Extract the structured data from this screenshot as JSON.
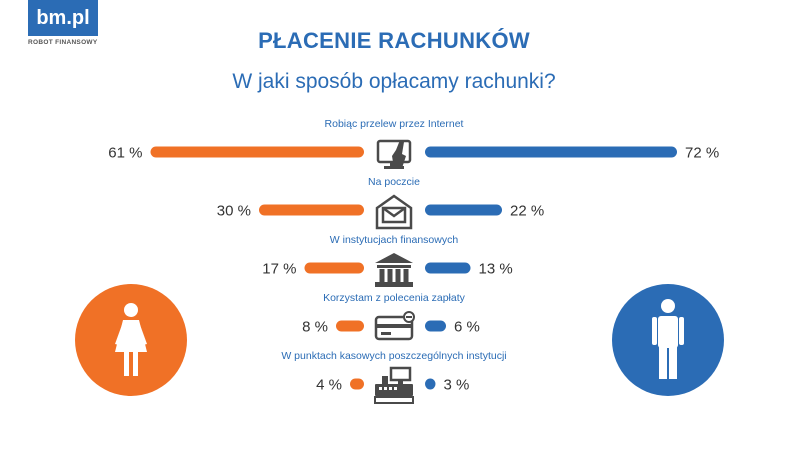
{
  "logo": {
    "text": "bm.pl",
    "subtitle": "ROBOT FINANSOWY"
  },
  "header": {
    "title": "PŁACENIE RACHUNKÓW",
    "subtitle": "W jaki sposób opłacamy rachunki?"
  },
  "colors": {
    "female": "#f07126",
    "male": "#2b6cb5",
    "icon": "#4a4a4a",
    "label": "#2b6cb5"
  },
  "chart_data": {
    "type": "bar",
    "orientation": "horizontal-diverging",
    "title": "W jaki sposób opłacamy rachunki?",
    "categories": [
      "Robiąc przelew przez Internet",
      "Na poczcie",
      "W instytucjach finansowych",
      "Korzystam z polecenia zapłaty",
      "W punktach kasowych poszczególnych instytucji"
    ],
    "icons": [
      "online-transfer-icon",
      "envelope-icon",
      "bank-icon",
      "card-icon",
      "cash-register-icon"
    ],
    "series": [
      {
        "side": "left",
        "color": "#f07126",
        "values": [
          61,
          30,
          17,
          8,
          4
        ],
        "labels": [
          "61 %",
          "30 %",
          "17 %",
          "8 %",
          "4 %"
        ]
      },
      {
        "side": "right",
        "color": "#2b6cb5",
        "values": [
          72,
          22,
          13,
          6,
          3
        ],
        "labels": [
          "72 %",
          "22 %",
          "13 %",
          "6 %",
          "3 %"
        ]
      }
    ],
    "xlim": [
      0,
      100
    ],
    "grid": false
  }
}
